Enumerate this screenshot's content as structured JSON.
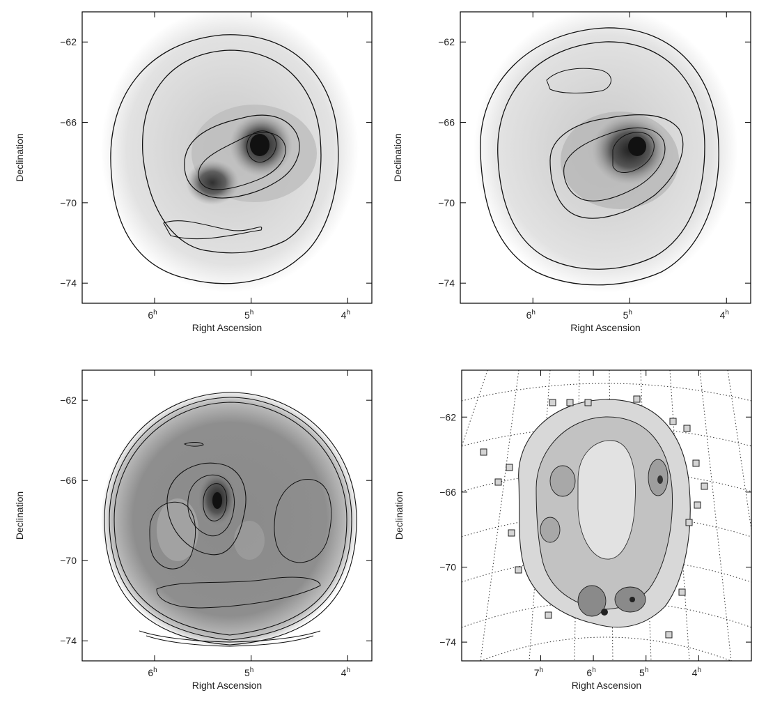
{
  "chart_data": [
    {
      "type": "heatmap",
      "panel": "top-left",
      "xlabel": "Right Ascension",
      "ylabel": "Declination",
      "xlim": [
        6.75,
        3.75
      ],
      "ylim": [
        -75.0,
        -60.5
      ],
      "xticks": [
        {
          "value": 6,
          "label": "6",
          "sup": "h"
        },
        {
          "value": 5,
          "label": "5",
          "sup": "h"
        },
        {
          "value": 4,
          "label": "4",
          "sup": "h"
        }
      ],
      "yticks": [
        {
          "value": -62,
          "label": "−62"
        },
        {
          "value": -66,
          "label": "−66"
        },
        {
          "value": -70,
          "label": "−70"
        },
        {
          "value": -74,
          "label": "−74"
        }
      ],
      "grid": false
    },
    {
      "type": "heatmap",
      "panel": "top-right",
      "xlabel": "Right Ascension",
      "ylabel": "Declination",
      "xlim": [
        6.75,
        3.75
      ],
      "ylim": [
        -75.0,
        -60.5
      ],
      "xticks": [
        {
          "value": 6,
          "label": "6",
          "sup": "h"
        },
        {
          "value": 5,
          "label": "5",
          "sup": "h"
        },
        {
          "value": 4,
          "label": "4",
          "sup": "h"
        }
      ],
      "yticks": [
        {
          "value": -62,
          "label": "−62"
        },
        {
          "value": -66,
          "label": "−66"
        },
        {
          "value": -70,
          "label": "−70"
        },
        {
          "value": -74,
          "label": "−74"
        }
      ],
      "grid": false
    },
    {
      "type": "heatmap",
      "panel": "bottom-left",
      "xlabel": "Right Ascension",
      "ylabel": "Declination",
      "xlim": [
        6.75,
        3.75
      ],
      "ylim": [
        -75.0,
        -60.5
      ],
      "xticks": [
        {
          "value": 6,
          "label": "6",
          "sup": "h"
        },
        {
          "value": 5,
          "label": "5",
          "sup": "h"
        },
        {
          "value": 4,
          "label": "4",
          "sup": "h"
        }
      ],
      "yticks": [
        {
          "value": -62,
          "label": "−62"
        },
        {
          "value": -66,
          "label": "−66"
        },
        {
          "value": -70,
          "label": "−70"
        },
        {
          "value": -74,
          "label": "−74"
        }
      ],
      "grid": false
    },
    {
      "type": "heatmap",
      "panel": "bottom-right",
      "xlabel": "Right Ascension",
      "ylabel": "Declination",
      "xlim": [
        8.5,
        3.0
      ],
      "ylim": [
        -75.0,
        -59.5
      ],
      "xticks": [
        {
          "value": 7,
          "label": "7",
          "sup": "h"
        },
        {
          "value": 6,
          "label": "6",
          "sup": "h"
        },
        {
          "value": 5,
          "label": "5",
          "sup": "h"
        },
        {
          "value": 4,
          "label": "4",
          "sup": "h"
        }
      ],
      "yticks": [
        {
          "value": -62,
          "label": "−62"
        },
        {
          "value": -66,
          "label": "−66"
        },
        {
          "value": -70,
          "label": "−70"
        },
        {
          "value": -74,
          "label": "−74"
        }
      ],
      "grid": true,
      "grid_style": "dotted"
    }
  ],
  "colors": {
    "ink": "#111111",
    "frame": "#000000",
    "background": "#ffffff"
  }
}
